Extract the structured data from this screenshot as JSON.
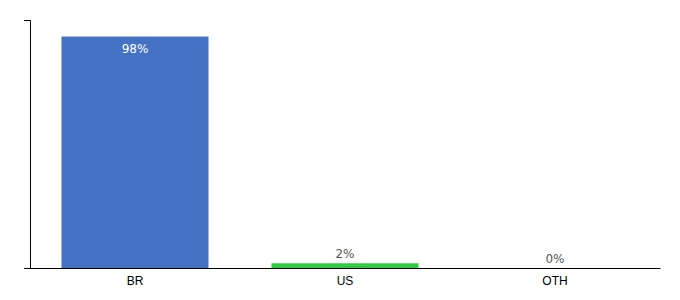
{
  "chart_data": {
    "type": "bar",
    "categories": [
      "BR",
      "US",
      "OTH"
    ],
    "values": [
      98,
      2,
      0
    ],
    "value_labels": [
      "98%",
      "2%",
      "0%"
    ],
    "colors": [
      "#4472c4",
      "#2ecc40",
      "#4472c4"
    ],
    "ylim": [
      0,
      105
    ],
    "yticks": [],
    "data_labels": true,
    "tick_labels": "x",
    "grid": false
  }
}
